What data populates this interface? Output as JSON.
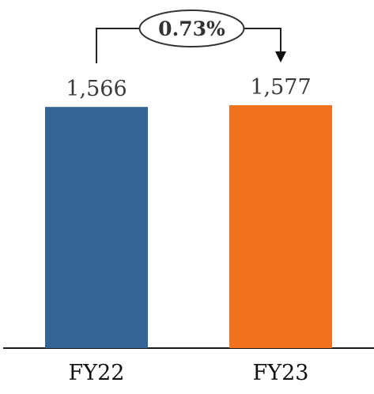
{
  "chart_data": {
    "type": "bar",
    "categories": [
      "FY22",
      "FY23"
    ],
    "values": [
      1566,
      1577
    ],
    "value_labels": [
      "1,566",
      "1,577"
    ],
    "colors": [
      "#336695",
      "#f0721e"
    ],
    "change_annotation": {
      "label": "0.73%",
      "from": "FY22",
      "to": "FY23"
    },
    "ylim": [
      0,
      1577
    ],
    "title": "",
    "xlabel": "",
    "ylabel": "",
    "grid": false,
    "legend": "none"
  }
}
